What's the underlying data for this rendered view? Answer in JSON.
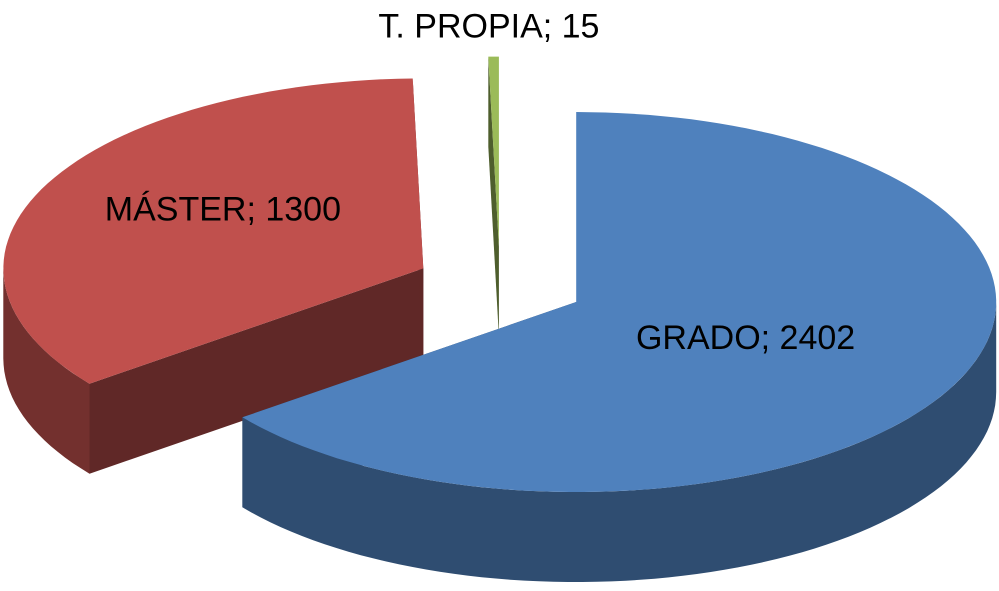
{
  "chart_data": {
    "type": "pie",
    "categories": [
      "GRADO",
      "MÁSTER",
      "T. PROPIA"
    ],
    "values": [
      2402,
      1300,
      15
    ],
    "value_labels": [
      "GRADO; 2402",
      "MÁSTER; 1300",
      "T. PROPIA; 15"
    ],
    "colors": [
      "#4f81bd",
      "#c0504d",
      "#9bbb59"
    ],
    "exploded": true,
    "three_d": true
  }
}
